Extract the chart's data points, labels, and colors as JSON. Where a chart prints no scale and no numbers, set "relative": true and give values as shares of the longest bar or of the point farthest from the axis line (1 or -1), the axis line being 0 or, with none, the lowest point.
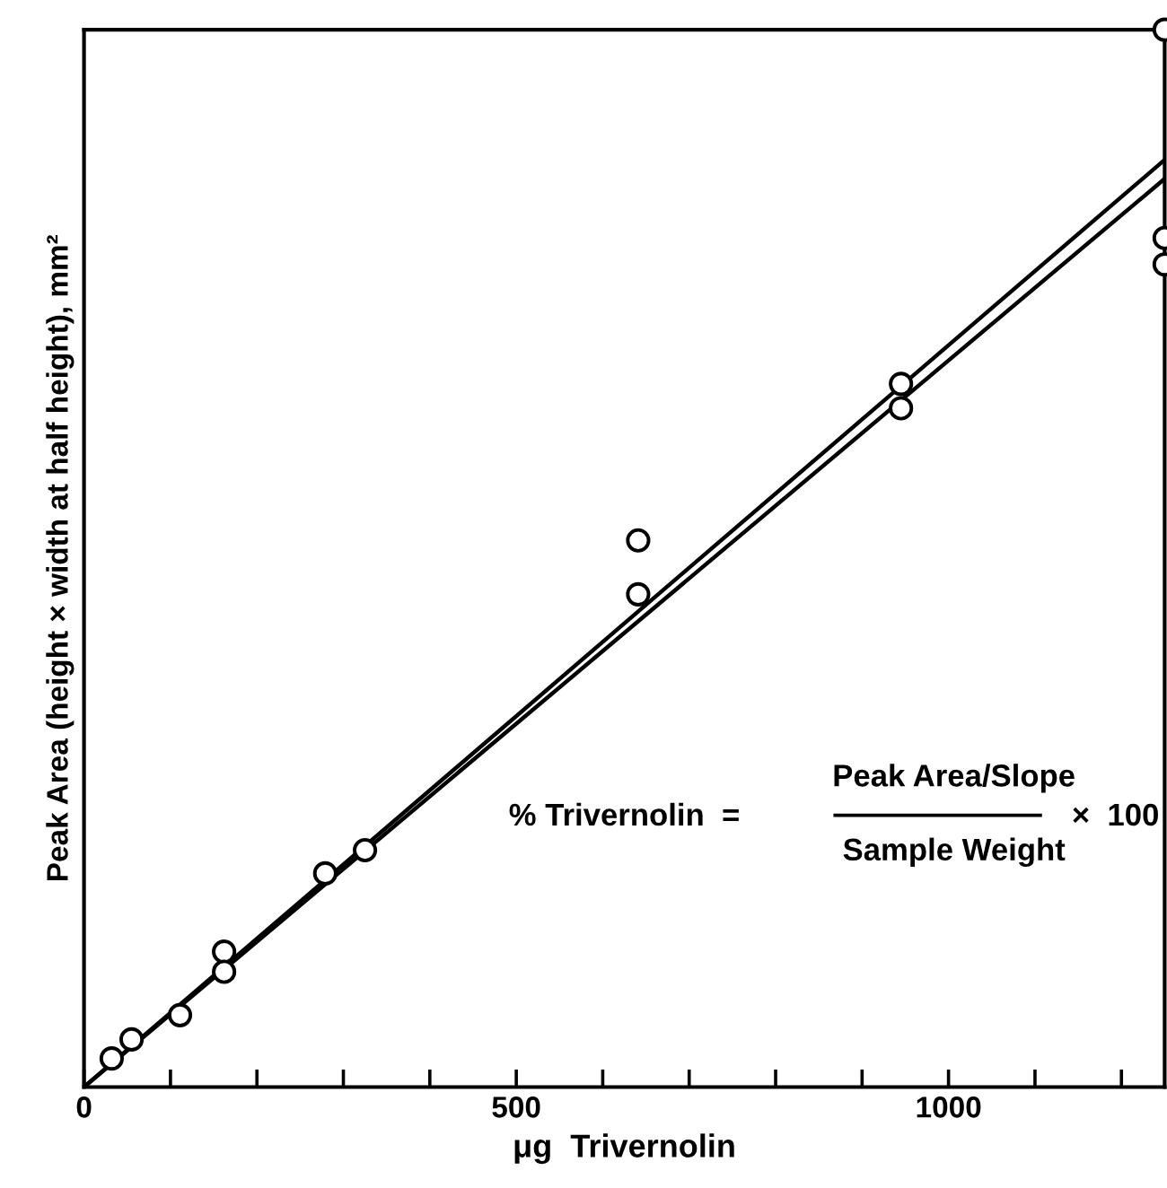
{
  "chart_data": {
    "type": "scatter",
    "xlabel": "μg  Trivernolin",
    "ylabel": "Peak Area (height × width at half height), mm²",
    "relative": true,
    "xlim": [
      0,
      1250
    ],
    "xticks": [
      0,
      {
        "value": 100,
        "label": null
      },
      {
        "value": 200,
        "label": null
      },
      {
        "value": 300,
        "label": null
      },
      {
        "value": 400,
        "label": null
      },
      500,
      {
        "value": 600,
        "label": null
      },
      {
        "value": 700,
        "label": null
      },
      {
        "value": 800,
        "label": null
      },
      {
        "value": 900,
        "label": null
      },
      1000,
      {
        "value": 1100,
        "label": null
      },
      {
        "value": 1200,
        "label": null
      }
    ],
    "grid": false,
    "legend": false,
    "series": [
      {
        "color": "#000000",
        "marker": "circle",
        "x": [
          32,
          55,
          111,
          162,
          162,
          279,
          325,
          641,
          641,
          945,
          945,
          1250,
          1250,
          1250
        ],
        "values": [
          0.027,
          0.045,
          0.068,
          0.128,
          0.109,
          0.202,
          0.224,
          0.466,
          0.517,
          0.665,
          0.642,
          0.803,
          0.778,
          1.0
        ]
      },
      {
        "type": "line",
        "color": "#000000",
        "marker": "none",
        "line_style": "solid",
        "x": [
          0,
          1250
        ],
        "values": [
          0,
          0.877
        ]
      },
      {
        "type": "line",
        "color": "#000000",
        "marker": "none",
        "line_style": "solid",
        "x": [
          0,
          1250
        ],
        "values": [
          0,
          0.859
        ]
      }
    ],
    "annotations": [
      "% Trivernolin  =",
      "Peak Area/Slope",
      "Sample Weight",
      "×  100"
    ]
  }
}
